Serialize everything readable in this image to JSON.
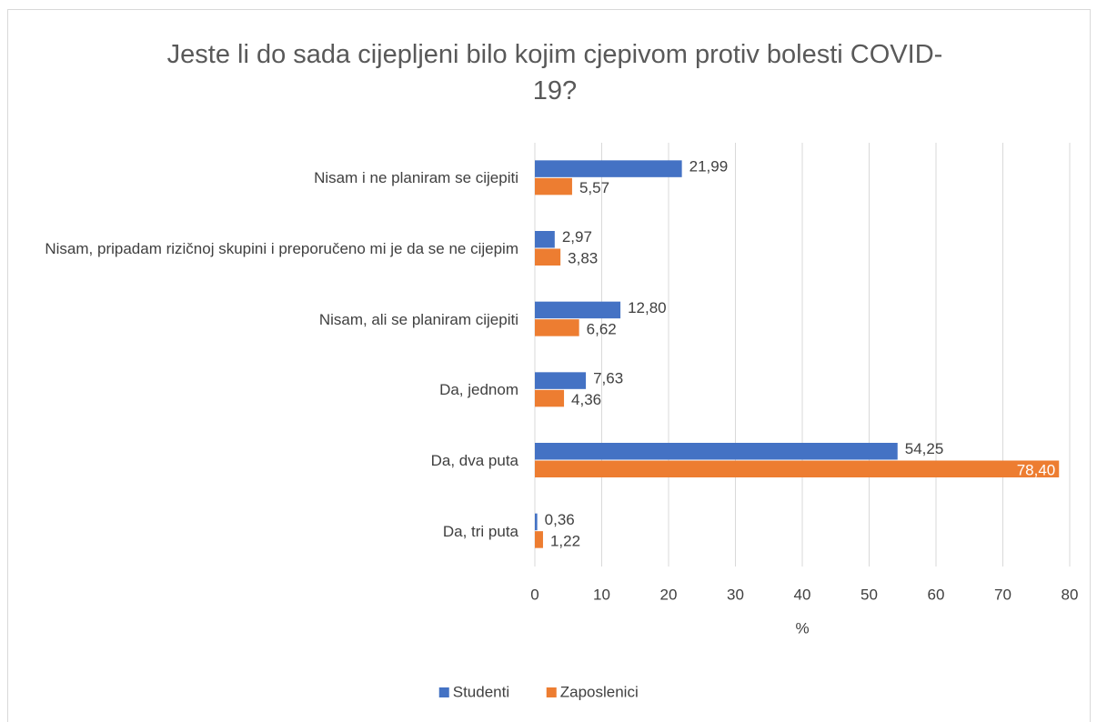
{
  "chart_data": {
    "type": "hbar",
    "title": "Jeste li do sada cijepljeni bilo kojim cjepivom protiv bolesti COVID-19?",
    "categories": [
      "Nisam i ne planiram se cijepiti",
      "Nisam, pripadam rizičnoj skupini i preporučeno mi je da se ne cijepim",
      "Nisam, ali se planiram cijepiti",
      "Da, jednom",
      "Da, dva puta",
      "Da, tri puta"
    ],
    "series": [
      {
        "name": "Studenti",
        "color": "#4472c4",
        "values": [
          21.99,
          2.97,
          12.8,
          7.63,
          54.25,
          0.36
        ],
        "value_labels": [
          "21,99",
          "2,97",
          "12,80",
          "7,63",
          "54,25",
          "0,36"
        ]
      },
      {
        "name": "Zaposlenici",
        "color": "#ed7d31",
        "values": [
          5.57,
          3.83,
          6.62,
          4.36,
          78.4,
          1.22
        ],
        "value_labels": [
          "5,57",
          "3,83",
          "6,62",
          "4,36",
          "78,40",
          "1,22"
        ]
      }
    ],
    "xlabel": "%",
    "xlim": [
      0,
      80
    ],
    "xticks": [
      0,
      10,
      20,
      30,
      40,
      50,
      60,
      70,
      80
    ],
    "grid": true,
    "legend": "bottom"
  }
}
